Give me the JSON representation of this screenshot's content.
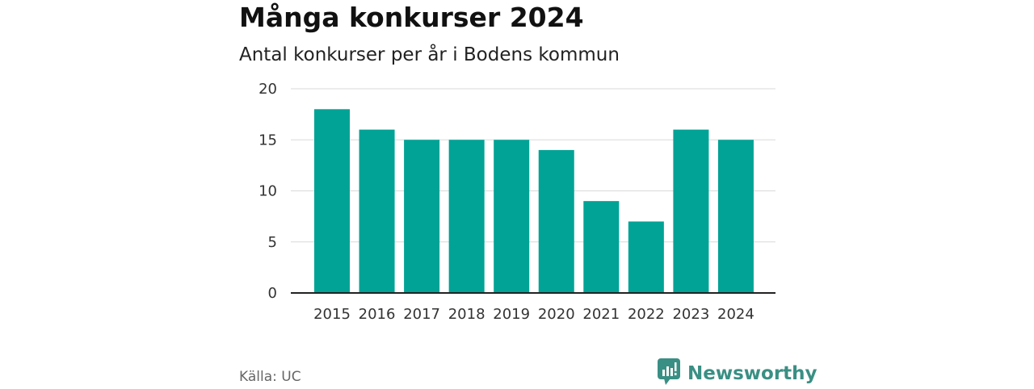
{
  "header": {
    "title": "Många konkurser 2024",
    "subtitle": "Antal konkurser per år i Bodens kommun"
  },
  "footer": {
    "source": "Källa: UC",
    "brand": "Newsworthy",
    "brand_icon": "bar-chart-speech-bubble-icon"
  },
  "colors": {
    "bar": "#00a396",
    "gridline": "#d9d9d9",
    "axis": "#222222",
    "brand": "#3a8f84"
  },
  "chart_data": {
    "type": "bar",
    "title": "Många konkurser 2024",
    "subtitle": "Antal konkurser per år i Bodens kommun",
    "xlabel": "",
    "ylabel": "",
    "categories": [
      "2015",
      "2016",
      "2017",
      "2018",
      "2019",
      "2020",
      "2021",
      "2022",
      "2023",
      "2024"
    ],
    "values": [
      18,
      16,
      15,
      15,
      15,
      14,
      9,
      7,
      16,
      15
    ],
    "ylim": [
      0,
      20
    ],
    "yticks": [
      0,
      5,
      10,
      15,
      20
    ],
    "grid": true,
    "legend": "none"
  }
}
